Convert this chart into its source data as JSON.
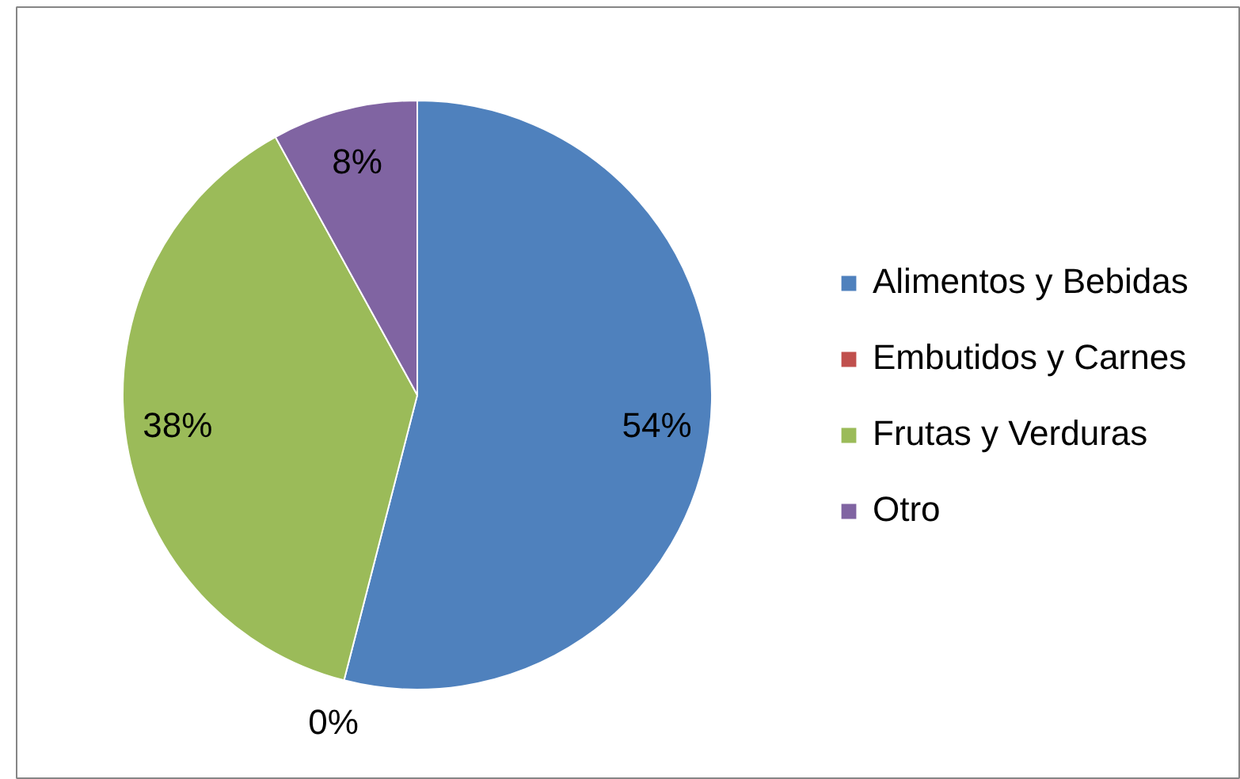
{
  "chart_data": {
    "type": "pie",
    "categories": [
      "Alimentos y Bebidas",
      "Embutidos y Carnes",
      "Frutas y Verduras",
      "Otro"
    ],
    "values": [
      54,
      0,
      38,
      8
    ],
    "colors": [
      "#4f81bd",
      "#c0504d",
      "#9bbb59",
      "#8064a2"
    ],
    "value_labels": [
      "54%",
      "0%",
      "38%",
      "8%"
    ],
    "legend": "right"
  }
}
